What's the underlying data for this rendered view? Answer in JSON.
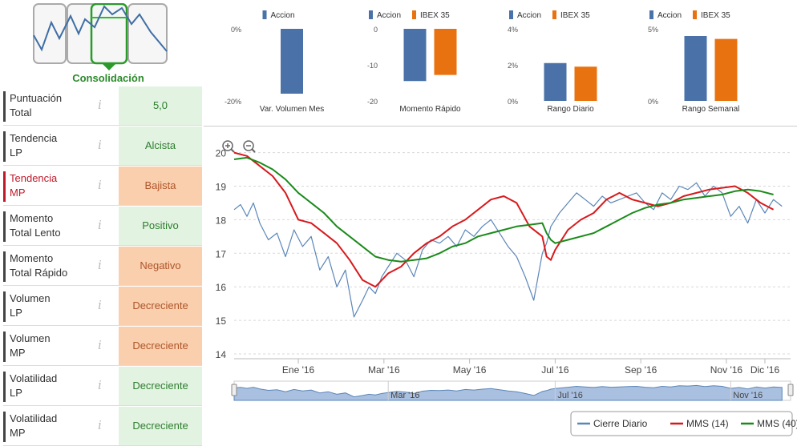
{
  "phase": {
    "label": "Consolidación",
    "active": 2
  },
  "indicators": [
    {
      "name_line1": "Puntuación",
      "name_line2": "Total",
      "value": "5,0",
      "tone": "green",
      "alert": false
    },
    {
      "name_line1": "Tendencia",
      "name_line2": "LP",
      "value": "Alcista",
      "tone": "green",
      "alert": false
    },
    {
      "name_line1": "Tendencia",
      "name_line2": "MP",
      "value": "Bajista",
      "tone": "orange",
      "alert": true
    },
    {
      "name_line1": "Momento",
      "name_line2": "Total Lento",
      "value": "Positivo",
      "tone": "green",
      "alert": false
    },
    {
      "name_line1": "Momento",
      "name_line2": "Total Rápido",
      "value": "Negativo",
      "tone": "orange",
      "alert": false
    },
    {
      "name_line1": "Volumen",
      "name_line2": "LP",
      "value": "Decreciente",
      "tone": "orange",
      "alert": false
    },
    {
      "name_line1": "Volumen",
      "name_line2": "MP",
      "value": "Decreciente",
      "tone": "orange",
      "alert": false
    },
    {
      "name_line1": "Volatilidad",
      "name_line2": "LP",
      "value": "Decreciente",
      "tone": "green",
      "alert": false
    },
    {
      "name_line1": "Volatilidad",
      "name_line2": "MP",
      "value": "Decreciente",
      "tone": "green",
      "alert": false
    }
  ],
  "info_glyph": "i",
  "colors": {
    "accion": "#4a72a8",
    "ibex": "#e8720f",
    "mms14": "#d7191c",
    "mms40": "#1a8a1a",
    "cierre": "#5b86b8"
  },
  "chart_data": [
    {
      "type": "bar",
      "title": "Var. Volumen Mes",
      "legend": [
        "Accion"
      ],
      "yticks": [
        "0%",
        "-20%"
      ],
      "ylim": [
        -20,
        0
      ],
      "series": [
        {
          "name": "Accion",
          "values": [
            -18
          ]
        }
      ]
    },
    {
      "type": "bar",
      "title": "Momento Rápido",
      "legend": [
        "Accion",
        "IBEX 35"
      ],
      "yticks": [
        "0",
        "-10",
        "-20"
      ],
      "ylim": [
        -20,
        0
      ],
      "series": [
        {
          "name": "Accion",
          "values": [
            -14.5
          ]
        },
        {
          "name": "IBEX 35",
          "values": [
            -12.8
          ]
        }
      ]
    },
    {
      "type": "bar",
      "title": "Rango Diario",
      "legend": [
        "Accion",
        "IBEX 35"
      ],
      "yticks": [
        "4%",
        "2%",
        "0%"
      ],
      "ylim": [
        0,
        4
      ],
      "series": [
        {
          "name": "Accion",
          "values": [
            2.1
          ]
        },
        {
          "name": "IBEX 35",
          "values": [
            1.9
          ]
        }
      ]
    },
    {
      "type": "bar",
      "title": "Rango Semanal",
      "legend": [
        "Accion",
        "IBEX 35"
      ],
      "yticks": [
        "5%",
        "0%"
      ],
      "ylim": [
        0,
        5
      ],
      "series": [
        {
          "name": "Accion",
          "values": [
            4.5
          ]
        },
        {
          "name": "IBEX 35",
          "values": [
            4.3
          ]
        }
      ]
    },
    {
      "type": "line",
      "xlabels": [
        "Ene '16",
        "Mar '16",
        "May '16",
        "Jul '16",
        "Sep '16",
        "Nov '16",
        "Dic '16"
      ],
      "xlabel_pos": [
        1,
        3,
        5,
        7,
        9,
        11,
        11.9
      ],
      "xlim": [
        -0.5,
        12.5
      ],
      "yticks": [
        14,
        15,
        16,
        17,
        18,
        19,
        20
      ],
      "ylim": [
        14,
        20.3
      ],
      "navigator_labels": [
        "Mar '16",
        "Jul '16",
        "Nov '16"
      ],
      "legend": [
        "Cierre Diario",
        "MMS (14)",
        "MMS (40)"
      ],
      "series": [
        {
          "name": "Cierre Diario",
          "x": [
            -0.5,
            -0.35,
            -0.2,
            -0.05,
            0.1,
            0.3,
            0.5,
            0.7,
            0.9,
            1.1,
            1.3,
            1.5,
            1.7,
            1.9,
            2.1,
            2.3,
            2.5,
            2.65,
            2.8,
            2.95,
            3.1,
            3.3,
            3.5,
            3.7,
            3.9,
            4.1,
            4.3,
            4.5,
            4.7,
            4.9,
            5.1,
            5.3,
            5.5,
            5.7,
            5.9,
            6.1,
            6.3,
            6.5,
            6.7,
            6.8,
            6.9,
            7.0,
            7.1,
            7.3,
            7.5,
            7.7,
            7.9,
            8.1,
            8.3,
            8.5,
            8.7,
            8.9,
            9.1,
            9.3,
            9.5,
            9.7,
            9.9,
            10.1,
            10.3,
            10.5,
            10.7,
            10.9,
            11.1,
            11.3,
            11.5,
            11.7,
            11.9,
            12.1,
            12.3
          ],
          "y": [
            18.3,
            18.45,
            18.1,
            18.5,
            17.9,
            17.4,
            17.6,
            16.9,
            17.7,
            17.2,
            17.5,
            16.5,
            16.9,
            16.0,
            16.5,
            15.1,
            15.6,
            16.0,
            15.8,
            16.3,
            16.6,
            17.0,
            16.8,
            16.3,
            17.1,
            17.4,
            17.3,
            17.5,
            17.2,
            17.7,
            17.5,
            17.8,
            18.0,
            17.6,
            17.2,
            16.9,
            16.3,
            15.6,
            17.0,
            17.3,
            17.8,
            18.0,
            18.2,
            18.5,
            18.8,
            18.6,
            18.4,
            18.7,
            18.5,
            18.6,
            18.7,
            18.8,
            18.5,
            18.3,
            18.8,
            18.6,
            19.0,
            18.9,
            19.1,
            18.7,
            19.0,
            18.8,
            18.1,
            18.4,
            17.9,
            18.6,
            18.2,
            18.6,
            18.4
          ]
        },
        {
          "name": "MMS (14)",
          "x": [
            -0.5,
            -0.2,
            0.1,
            0.4,
            0.7,
            1.0,
            1.3,
            1.6,
            1.9,
            2.2,
            2.5,
            2.8,
            3.1,
            3.4,
            3.7,
            4.0,
            4.3,
            4.6,
            4.9,
            5.2,
            5.5,
            5.8,
            6.1,
            6.4,
            6.7,
            6.8,
            6.9,
            7.0,
            7.3,
            7.6,
            7.9,
            8.2,
            8.5,
            8.8,
            9.1,
            9.4,
            9.7,
            10.0,
            10.3,
            10.6,
            10.9,
            11.2,
            11.5,
            11.8,
            12.1
          ],
          "y": [
            20.0,
            19.9,
            19.6,
            19.3,
            18.8,
            18.0,
            17.9,
            17.6,
            17.3,
            16.8,
            16.2,
            16.0,
            16.4,
            16.6,
            17.0,
            17.3,
            17.5,
            17.8,
            18.0,
            18.3,
            18.6,
            18.7,
            18.5,
            17.8,
            17.5,
            16.9,
            16.8,
            17.1,
            17.7,
            18.0,
            18.2,
            18.6,
            18.8,
            18.6,
            18.5,
            18.4,
            18.5,
            18.7,
            18.8,
            18.9,
            18.95,
            19.0,
            18.8,
            18.5,
            18.3
          ]
        },
        {
          "name": "MMS (40)",
          "x": [
            -0.5,
            -0.2,
            0.1,
            0.4,
            0.7,
            1.0,
            1.3,
            1.6,
            1.9,
            2.2,
            2.5,
            2.8,
            3.1,
            3.4,
            3.7,
            4.0,
            4.3,
            4.6,
            4.9,
            5.2,
            5.5,
            5.8,
            6.1,
            6.4,
            6.7,
            6.8,
            6.9,
            7.0,
            7.3,
            7.6,
            7.9,
            8.2,
            8.5,
            8.8,
            9.1,
            9.4,
            9.7,
            10.0,
            10.3,
            10.6,
            10.9,
            11.2,
            11.5,
            11.8,
            12.1
          ],
          "y": [
            19.8,
            19.85,
            19.7,
            19.5,
            19.2,
            18.8,
            18.5,
            18.2,
            17.8,
            17.5,
            17.2,
            16.9,
            16.8,
            16.75,
            16.8,
            16.85,
            17.0,
            17.2,
            17.3,
            17.5,
            17.6,
            17.7,
            17.8,
            17.85,
            17.9,
            17.6,
            17.4,
            17.3,
            17.4,
            17.5,
            17.6,
            17.8,
            18.0,
            18.2,
            18.35,
            18.45,
            18.5,
            18.6,
            18.65,
            18.7,
            18.75,
            18.85,
            18.9,
            18.85,
            18.75
          ]
        }
      ]
    }
  ]
}
